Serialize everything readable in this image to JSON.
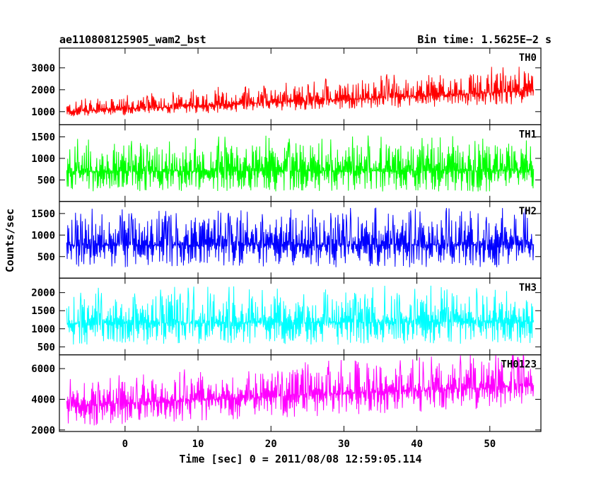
{
  "header": {
    "title": "ae110808125905_wam2_bst",
    "bin_time": "Bin time: 1.5625E−2 s"
  },
  "ylabel": "Counts/sec",
  "xlabel": "Time [sec] 0 = 2011/08/08 12:59:05.114",
  "chart_data": {
    "type": "line",
    "title": "ae110808125905_wam2_bst",
    "xlabel": "Time [sec] 0 = 2011/08/08 12:59:05.114",
    "ylabel": "Counts/sec",
    "xlim": [
      -9,
      57
    ],
    "x_ticks": [
      0,
      10,
      20,
      30,
      40,
      50
    ],
    "x_tick_labels": [
      "0",
      "10",
      "20",
      "30",
      "40",
      "50"
    ],
    "x_range_data": [
      -8,
      56
    ],
    "grid": false,
    "panels": [
      {
        "name": "TH0",
        "color": "#ff0000",
        "ylim": [
          400,
          3900
        ],
        "y_ticks": [
          1000,
          2000,
          3000
        ],
        "y_tick_labels": [
          "1000",
          "2000",
          "3000"
        ],
        "trend_start": [
          1000,
          750,
          1450
        ],
        "trend_end": [
          1950,
          1350,
          2900
        ]
      },
      {
        "name": "TH1",
        "color": "#00ff00",
        "ylim": [
          0,
          1780
        ],
        "y_ticks": [
          500,
          1000,
          1500
        ],
        "y_tick_labels": [
          "500",
          "1000",
          "1500"
        ],
        "trend_start": [
          700,
          230,
          1300
        ],
        "trend_end": [
          720,
          230,
          1350
        ]
      },
      {
        "name": "TH2",
        "color": "#0000ff",
        "ylim": [
          0,
          1780
        ],
        "y_ticks": [
          500,
          1000,
          1500
        ],
        "y_tick_labels": [
          "500",
          "1000",
          "1500"
        ],
        "trend_start": [
          770,
          250,
          1400
        ],
        "trend_end": [
          780,
          250,
          1420
        ]
      },
      {
        "name": "TH3",
        "color": "#00ffff",
        "ylim": [
          280,
          2400
        ],
        "y_ticks": [
          500,
          1000,
          1500,
          2000
        ],
        "y_tick_labels": [
          "500",
          "1000",
          "1500",
          "2000"
        ],
        "trend_start": [
          1150,
          550,
          1900
        ],
        "trend_end": [
          1200,
          550,
          1950
        ]
      },
      {
        "name": "TH0123",
        "color": "#ff00ff",
        "ylim": [
          1900,
          6900
        ],
        "y_ticks": [
          2000,
          4000,
          6000
        ],
        "y_tick_labels": [
          "2000",
          "4000",
          "6000"
        ],
        "trend_start": [
          3600,
          2200,
          5000
        ],
        "trend_end": [
          4900,
          3500,
          6700
        ]
      }
    ]
  }
}
